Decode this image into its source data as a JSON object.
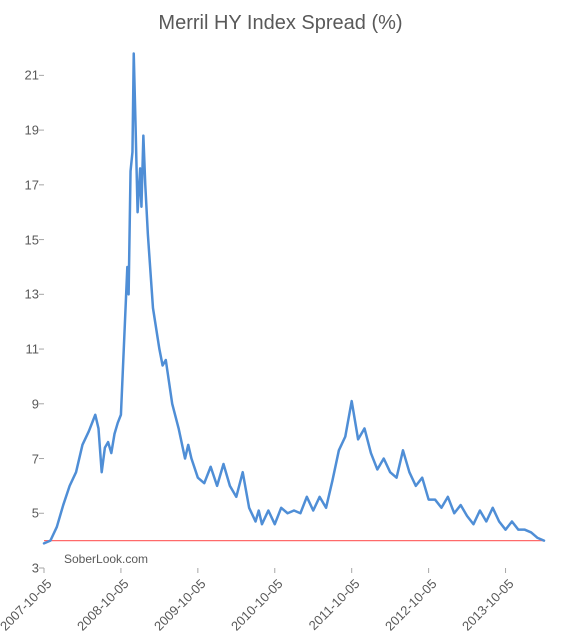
{
  "chart": {
    "type": "line",
    "title": "Merril HY Index Spread (%)",
    "title_fontsize": 20,
    "title_color": "#595959",
    "background_color": "#ffffff",
    "attribution": "SoberLook.com",
    "x_axis": {
      "type": "date",
      "ticks": [
        "2007-10-05",
        "2008-10-05",
        "2009-10-05",
        "2010-10-05",
        "2011-10-05",
        "2012-10-05",
        "2013-10-05"
      ],
      "tick_rotation_deg": -45,
      "tick_fontsize": 13,
      "tick_color": "#595959",
      "range": [
        0,
        78
      ]
    },
    "y_axis": {
      "ylim": [
        3,
        22
      ],
      "ticks": [
        3,
        5,
        7,
        9,
        11,
        13,
        15,
        17,
        19,
        21
      ],
      "tick_fontsize": 13,
      "tick_color": "#595959"
    },
    "gridlines": {
      "show": false
    },
    "reference_line": {
      "y": 4.0,
      "color": "#ff6a6a",
      "width": 1.2
    },
    "series": [
      {
        "name": "Merril HY Index Spread",
        "color": "#4f8ed6",
        "line_width": 2.5,
        "data": [
          [
            0,
            3.9
          ],
          [
            1,
            4.0
          ],
          [
            2,
            4.5
          ],
          [
            3,
            5.3
          ],
          [
            4,
            6.0
          ],
          [
            5,
            6.5
          ],
          [
            6,
            7.5
          ],
          [
            7,
            8.0
          ],
          [
            8,
            8.6
          ],
          [
            8.5,
            8.1
          ],
          [
            9,
            6.5
          ],
          [
            9.5,
            7.4
          ],
          [
            10,
            7.6
          ],
          [
            10.5,
            7.2
          ],
          [
            11,
            7.9
          ],
          [
            11.5,
            8.3
          ],
          [
            12,
            8.6
          ],
          [
            13,
            14.0
          ],
          [
            13.2,
            13.0
          ],
          [
            13.5,
            17.5
          ],
          [
            13.8,
            18.2
          ],
          [
            14,
            21.8
          ],
          [
            14.3,
            19.0
          ],
          [
            14.6,
            16.0
          ],
          [
            15,
            17.6
          ],
          [
            15.2,
            16.2
          ],
          [
            15.5,
            18.8
          ],
          [
            15.8,
            17.0
          ],
          [
            16.2,
            15.2
          ],
          [
            17,
            12.5
          ],
          [
            18,
            11.0
          ],
          [
            18.5,
            10.4
          ],
          [
            19,
            10.6
          ],
          [
            20,
            9.0
          ],
          [
            21,
            8.1
          ],
          [
            22,
            7.0
          ],
          [
            22.5,
            7.5
          ],
          [
            23,
            7.0
          ],
          [
            24,
            6.3
          ],
          [
            25,
            6.1
          ],
          [
            26,
            6.7
          ],
          [
            27,
            6.0
          ],
          [
            28,
            6.8
          ],
          [
            29,
            6.0
          ],
          [
            30,
            5.6
          ],
          [
            31,
            6.5
          ],
          [
            32,
            5.2
          ],
          [
            33,
            4.7
          ],
          [
            33.5,
            5.1
          ],
          [
            34,
            4.6
          ],
          [
            35,
            5.1
          ],
          [
            36,
            4.6
          ],
          [
            37,
            5.2
          ],
          [
            38,
            5.0
          ],
          [
            39,
            5.1
          ],
          [
            40,
            5.0
          ],
          [
            41,
            5.6
          ],
          [
            42,
            5.1
          ],
          [
            43,
            5.6
          ],
          [
            44,
            5.2
          ],
          [
            45,
            6.2
          ],
          [
            46,
            7.3
          ],
          [
            47,
            7.8
          ],
          [
            48,
            9.1
          ],
          [
            49,
            7.7
          ],
          [
            50,
            8.1
          ],
          [
            51,
            7.2
          ],
          [
            52,
            6.6
          ],
          [
            53,
            7.0
          ],
          [
            54,
            6.5
          ],
          [
            55,
            6.3
          ],
          [
            56,
            7.3
          ],
          [
            57,
            6.5
          ],
          [
            58,
            6.0
          ],
          [
            59,
            6.3
          ],
          [
            60,
            5.5
          ],
          [
            61,
            5.5
          ],
          [
            62,
            5.2
          ],
          [
            63,
            5.6
          ],
          [
            64,
            5.0
          ],
          [
            65,
            5.3
          ],
          [
            66,
            4.9
          ],
          [
            67,
            4.6
          ],
          [
            68,
            5.1
          ],
          [
            69,
            4.7
          ],
          [
            70,
            5.2
          ],
          [
            71,
            4.7
          ],
          [
            72,
            4.4
          ],
          [
            73,
            4.7
          ],
          [
            74,
            4.4
          ],
          [
            75,
            4.4
          ],
          [
            76,
            4.3
          ],
          [
            77,
            4.1
          ],
          [
            78,
            4.0
          ]
        ]
      }
    ],
    "tick_mark_color": "#a6a6a6",
    "tick_mark_length": 5
  }
}
